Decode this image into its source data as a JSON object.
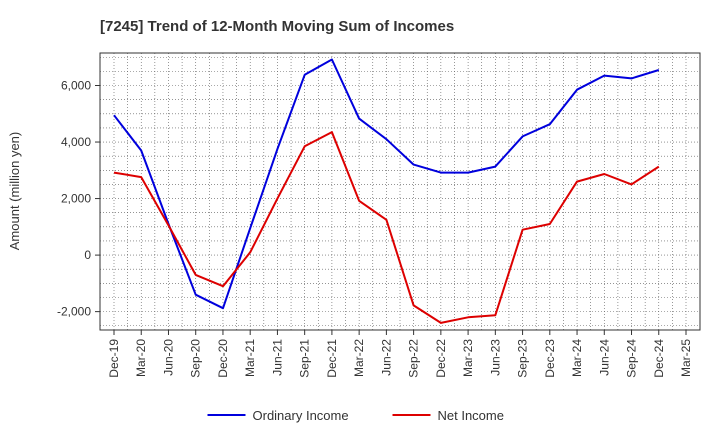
{
  "chart_data": {
    "type": "line",
    "title": "[7245]  Trend of 12-Month Moving Sum of Incomes",
    "xlabel": "",
    "ylabel": "Amount (million yen)",
    "ylim": [
      -2650,
      7150
    ],
    "yticks": [
      -2000,
      0,
      2000,
      4000,
      6000
    ],
    "ytick_labels": [
      "-2,000",
      "0",
      "2,000",
      "4,000",
      "6,000"
    ],
    "categories": [
      "Dec-19",
      "Mar-20",
      "Jun-20",
      "Sep-20",
      "Dec-20",
      "Mar-21",
      "Jun-21",
      "Sep-21",
      "Dec-21",
      "Mar-22",
      "Jun-22",
      "Sep-22",
      "Dec-22",
      "Mar-23",
      "Jun-23",
      "Sep-23",
      "Dec-23",
      "Mar-24",
      "Jun-24",
      "Sep-24",
      "Dec-24",
      "Mar-25"
    ],
    "grid": true,
    "legend_position": "bottom",
    "series": [
      {
        "name": "Ordinary Income",
        "color": "#0000dd",
        "values": [
          4950,
          3700,
          1100,
          -1400,
          -1880,
          950,
          3750,
          6380,
          6920,
          4830,
          4100,
          3200,
          2920,
          2920,
          3130,
          4200,
          4630,
          5850,
          6350,
          6250,
          6550,
          null
        ]
      },
      {
        "name": "Net Income",
        "color": "#dd0000",
        "values": [
          2920,
          2760,
          1050,
          -700,
          -1100,
          100,
          2000,
          3850,
          4350,
          1920,
          1250,
          -1780,
          -2400,
          -2200,
          -2130,
          900,
          1100,
          2600,
          2870,
          2500,
          3130,
          null
        ]
      }
    ]
  }
}
